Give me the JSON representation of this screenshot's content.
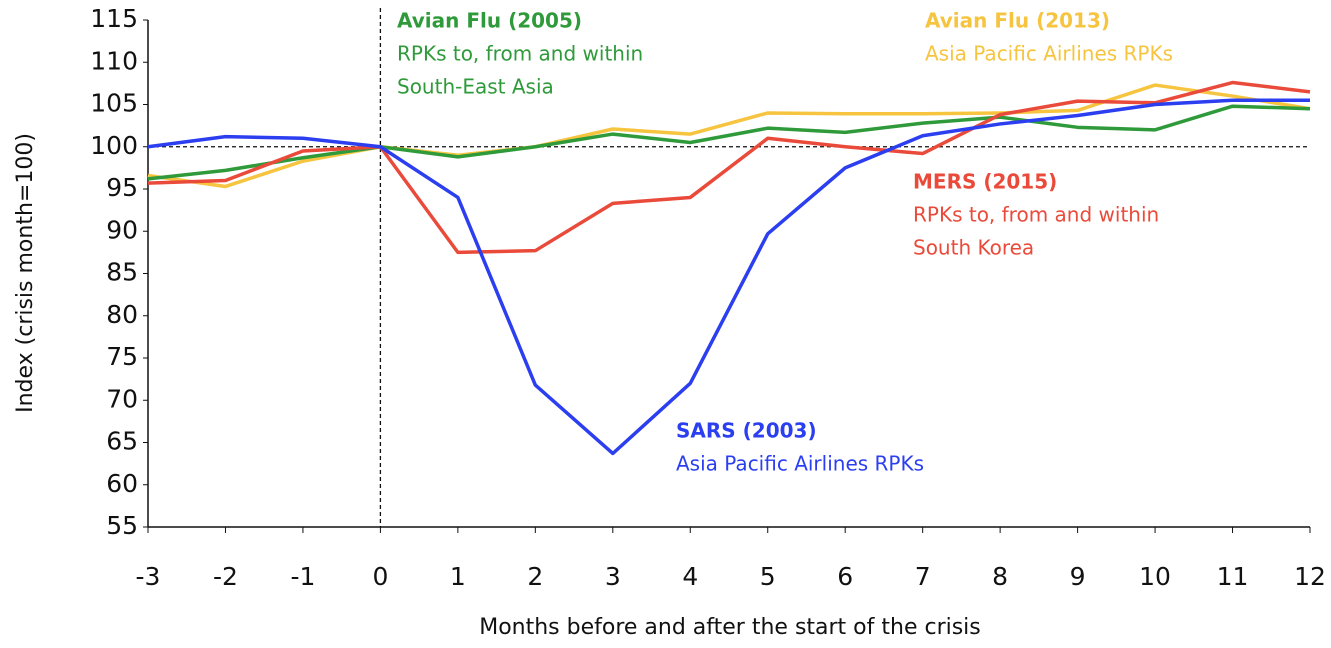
{
  "chart_data": {
    "type": "line",
    "x_label": "Months before and after the start of the crisis",
    "y_label": "Index (crisis month=100)",
    "x": [
      -3,
      -2,
      -1,
      0,
      1,
      2,
      3,
      4,
      5,
      6,
      7,
      8,
      9,
      10,
      11,
      12
    ],
    "xlim": [
      -3,
      12
    ],
    "xticks": [
      -3,
      -2,
      -1,
      0,
      1,
      2,
      3,
      4,
      5,
      6,
      7,
      8,
      9,
      10,
      11,
      12
    ],
    "ylim": [
      55,
      115
    ],
    "yticks": [
      55,
      60,
      65,
      70,
      75,
      80,
      85,
      90,
      95,
      100,
      105,
      110,
      115
    ],
    "reference_x": 0,
    "reference_y": 100,
    "series": [
      {
        "name": "SARS (2003)",
        "color": "#2b3ef0",
        "values": [
          100,
          101.2,
          101,
          100,
          94,
          71.8,
          63.7,
          72,
          89.7,
          97.5,
          101.3,
          102.7,
          103.7,
          105,
          105.5,
          105.5
        ]
      },
      {
        "name": "Avian Flu (2005)",
        "color": "#2f9a3a",
        "values": [
          96.2,
          97.2,
          98.7,
          100,
          98.8,
          100,
          101.5,
          100.5,
          102.2,
          101.7,
          102.8,
          103.5,
          102.3,
          102,
          104.8,
          104.5
        ]
      },
      {
        "name": "Avian Flu (2013)",
        "color": "#f6c43f",
        "values": [
          96.6,
          95.3,
          98.3,
          100,
          99,
          100,
          102.1,
          101.5,
          104,
          103.9,
          103.9,
          104,
          104.3,
          107.3,
          106,
          104.5
        ]
      },
      {
        "name": "MERS (2015)",
        "color": "#ea4a3a",
        "values": [
          95.7,
          96,
          99.5,
          100,
          87.5,
          87.7,
          93.3,
          94,
          101,
          100,
          99.2,
          103.8,
          105.4,
          105.2,
          107.6,
          106.5
        ]
      }
    ],
    "annotations": [
      {
        "lines": [
          "Asia Pacific Airlines RPKs"
        ]
      },
      {
        "lines": [
          "RPKs to, from and within",
          "South-East Asia"
        ]
      },
      {
        "lines": [
          "Asia Pacific Airlines RPKs"
        ]
      },
      {
        "lines": [
          "RPKs to, from and within",
          "South Korea"
        ]
      }
    ]
  }
}
